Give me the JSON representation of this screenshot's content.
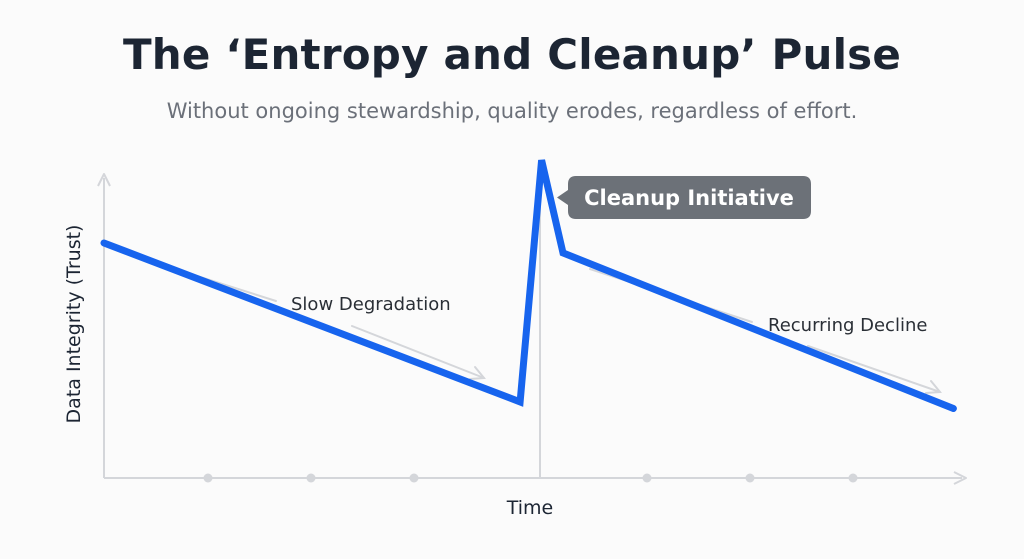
{
  "chart_data": {
    "type": "line",
    "title": "The ‘Entropy and Cleanup’ Pulse",
    "subtitle": "Without ongoing stewardship, quality erodes, regardless of effort.",
    "xlabel": "Time",
    "ylabel": "Data Integrity (Trust)",
    "xlim": [
      0,
      100
    ],
    "ylim": [
      0,
      100
    ],
    "grid": false,
    "series": [
      {
        "values": [
          {
            "x": 0,
            "y": 71
          },
          {
            "x": 48.5,
            "y": 23
          },
          {
            "x": 51,
            "y": 96
          },
          {
            "x": 53.5,
            "y": 68
          },
          {
            "x": 99,
            "y": 21
          }
        ]
      }
    ],
    "annotations": [
      {
        "text": "Slow Degradation",
        "kind": "arrow-label"
      },
      {
        "text": "Recurring Decline",
        "kind": "arrow-label"
      },
      {
        "text": "Cleanup Initiative",
        "kind": "callout"
      }
    ],
    "colors": {
      "line": "#1764ee",
      "axis": "#d4d6da",
      "callout": "#6c7178"
    }
  }
}
